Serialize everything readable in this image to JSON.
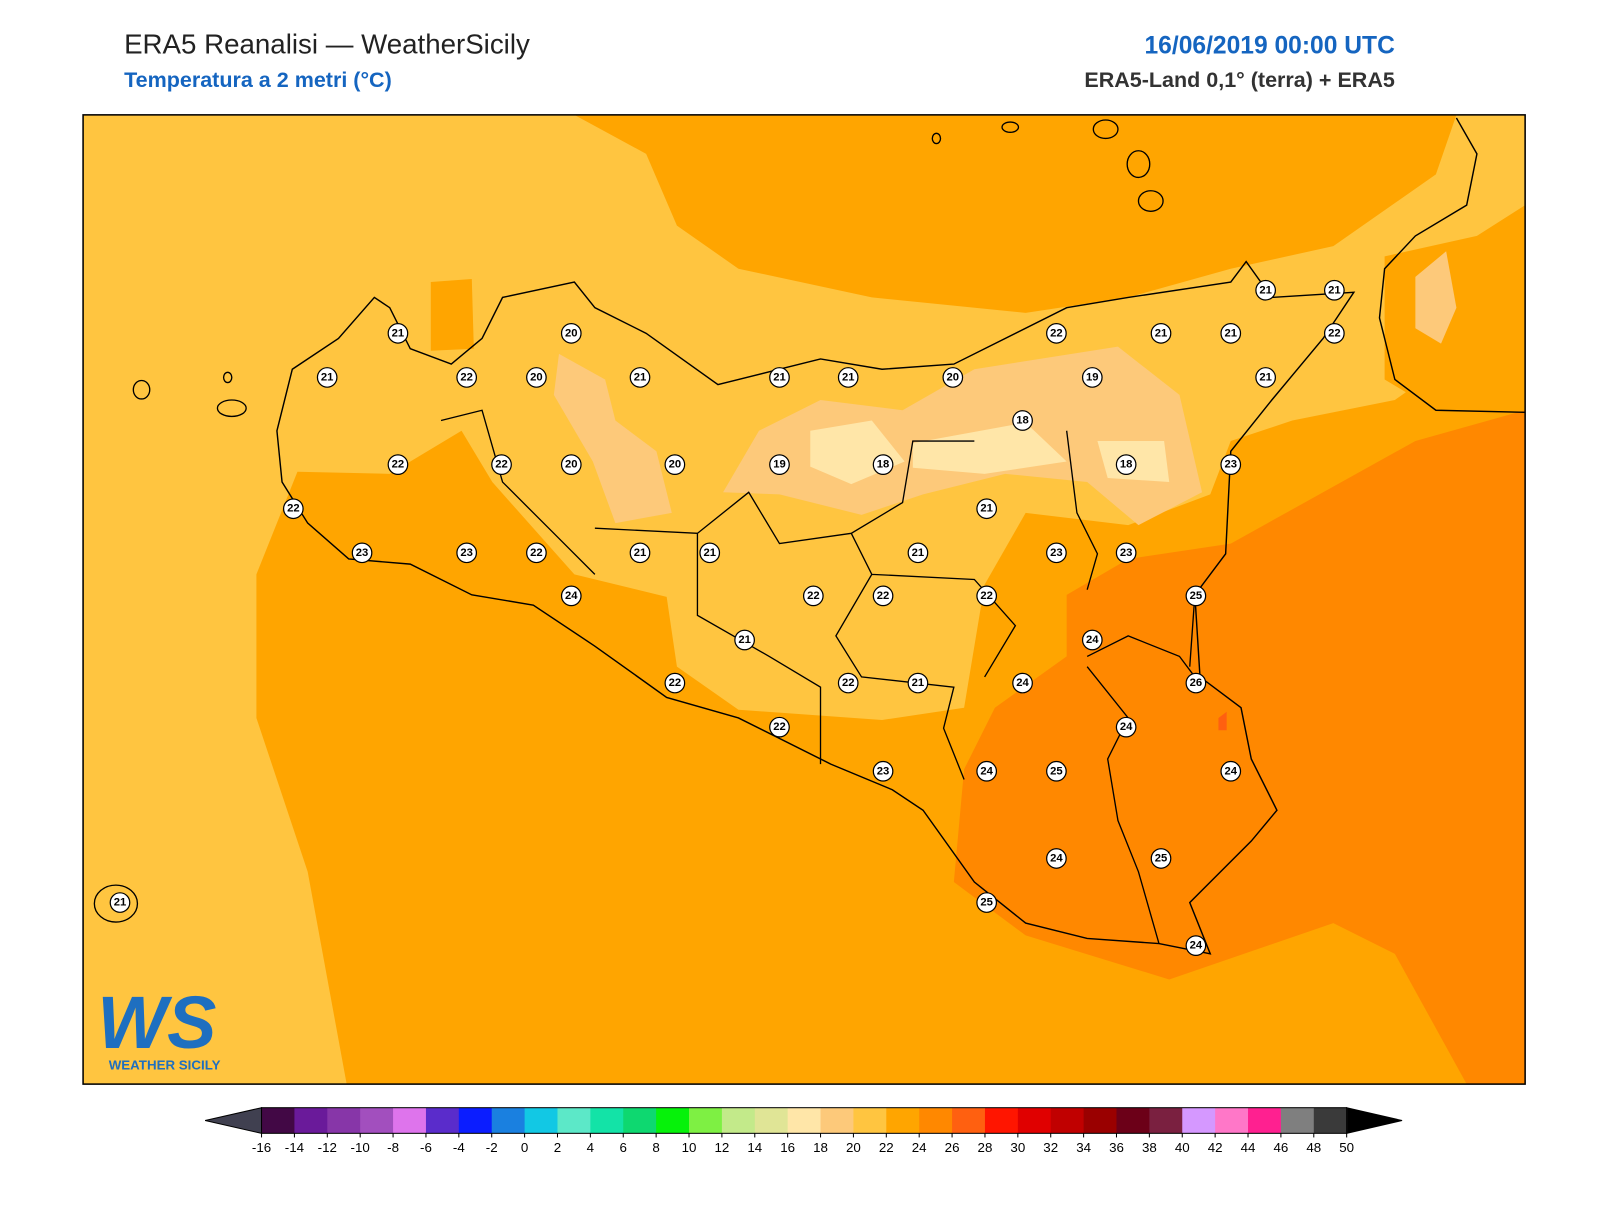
{
  "header": {
    "title": "ERA5 Reanalisi — WeatherSicily",
    "subtitle": "Temperatura a 2 metri (°C)",
    "datetime": "16/06/2019 00:00 UTC",
    "source": "ERA5-Land 0,1° (terra) + ERA5"
  },
  "map": {
    "stations": [
      21,
      20,
      21,
      22,
      20,
      21,
      21,
      21,
      20,
      22,
      21,
      21,
      21,
      21,
      22,
      19,
      21,
      18,
      22,
      22,
      20,
      20,
      19,
      18,
      18,
      23,
      22,
      21,
      23,
      23,
      22,
      21,
      21,
      21,
      23,
      23,
      24,
      22,
      22,
      22,
      25,
      21,
      24,
      22,
      22,
      21,
      24,
      26,
      22,
      24,
      23,
      24,
      25,
      24,
      24,
      25,
      21,
      25,
      24
    ]
  },
  "logo": {
    "text": "WS",
    "caption": "WEATHER SICILY"
  },
  "colorbar": {
    "ticks": [
      -16,
      -14,
      -12,
      -10,
      -8,
      -6,
      -4,
      -2,
      0,
      2,
      4,
      6,
      8,
      10,
      12,
      14,
      16,
      18,
      20,
      22,
      24,
      26,
      28,
      30,
      32,
      34,
      36,
      38,
      40,
      42,
      44,
      46,
      48,
      50
    ],
    "colors": [
      "#420845",
      "#6a1a9a",
      "#8736a8",
      "#a24fbe",
      "#de74ec",
      "#5a2ccb",
      "#0b1dff",
      "#1a80e0",
      "#12c8e4",
      "#5ce8c8",
      "#13e3a7",
      "#0ed870",
      "#06f20a",
      "#7ef043",
      "#c3ea8a",
      "#e0e596",
      "#ffe6a8",
      "#fdc97a",
      "#ffc540",
      "#ffa500",
      "#ff8800",
      "#ff6010",
      "#ff1500",
      "#e00000",
      "#c00000",
      "#9a0000",
      "#6c0018",
      "#7a2040",
      "#d598ff",
      "#ff77c8",
      "#ff2090",
      "#7f7f7f",
      "#3a3a3a"
    ],
    "under_color": "#404050",
    "over_color": "#000000"
  }
}
